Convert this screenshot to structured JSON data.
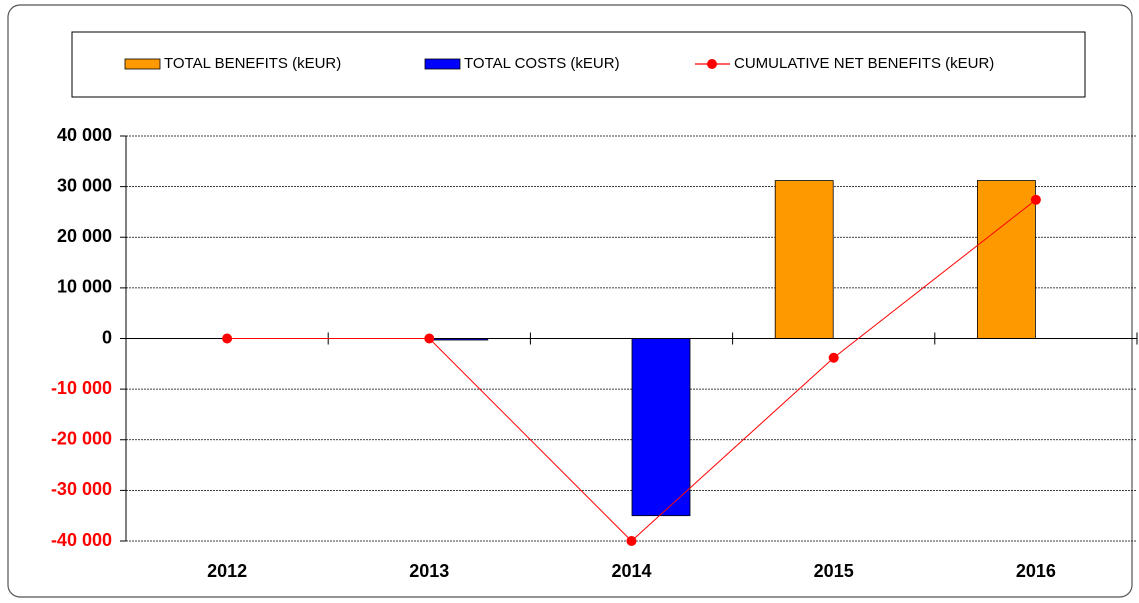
{
  "chart_data": {
    "type": "bar",
    "categories": [
      "2012",
      "2013",
      "2014",
      "2015",
      "2016"
    ],
    "series": [
      {
        "name": "TOTAL BENEFITS (kEUR)",
        "color": "#ff9900",
        "values": [
          0,
          0,
          0,
          31200,
          31200
        ]
      },
      {
        "name": "TOTAL COSTS (kEUR)",
        "color": "#0000ff",
        "values": [
          0,
          -300,
          -35000,
          0,
          0
        ]
      },
      {
        "name": "CUMULATIVE NET BENEFITS (kEUR)",
        "color": "#ff0000",
        "type": "line",
        "values": [
          0,
          0,
          -40000,
          -3800,
          27400
        ]
      }
    ],
    "ylim": [
      -40000,
      40000
    ],
    "yticks": [
      {
        "value": 40000,
        "label": "40 000"
      },
      {
        "value": 30000,
        "label": "30 000"
      },
      {
        "value": 20000,
        "label": "20 000"
      },
      {
        "value": 10000,
        "label": "10 000"
      },
      0,
      {
        "value": -10000,
        "label": "-10 000"
      },
      {
        "value": -20000,
        "label": "-20 000"
      },
      {
        "value": -30000,
        "label": "-30 000"
      },
      {
        "value": -40000,
        "label": "-40 000"
      }
    ],
    "grid": true,
    "legend": "top"
  }
}
